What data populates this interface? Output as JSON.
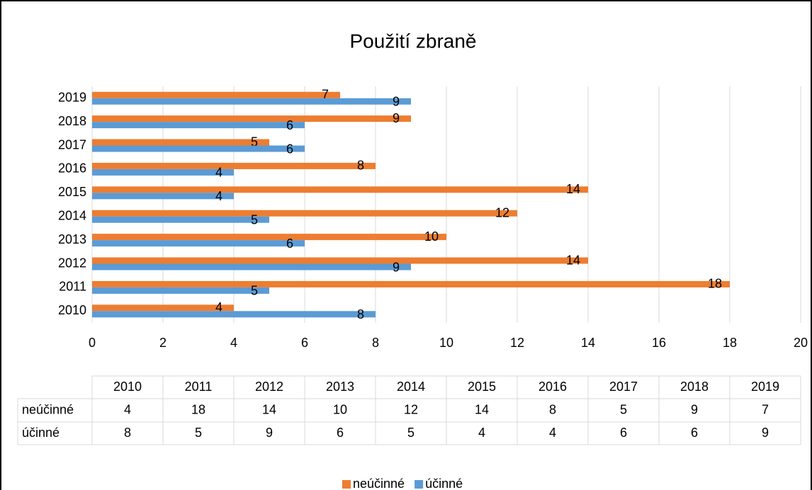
{
  "chart_data": {
    "type": "bar",
    "orientation": "horizontal",
    "title": "Použití zbraně",
    "categories": [
      "2010",
      "2011",
      "2012",
      "2013",
      "2014",
      "2015",
      "2016",
      "2017",
      "2018",
      "2019"
    ],
    "series": [
      {
        "name": "neúčinné",
        "color": "#ed7d31",
        "values": [
          4,
          18,
          14,
          10,
          12,
          14,
          8,
          5,
          9,
          7
        ]
      },
      {
        "name": "účinné",
        "color": "#5b9bd5",
        "values": [
          8,
          5,
          9,
          6,
          5,
          4,
          4,
          6,
          6,
          9
        ]
      }
    ],
    "xlim": [
      0,
      20
    ],
    "xticks": [
      0,
      2,
      4,
      6,
      8,
      10,
      12,
      14,
      16,
      18,
      20
    ],
    "grid": true,
    "legend": "bottom",
    "data_table": true
  }
}
